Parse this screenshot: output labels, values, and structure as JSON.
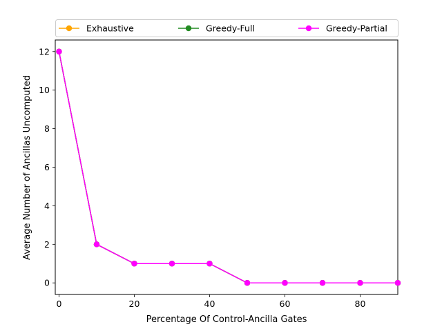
{
  "chart_data": {
    "type": "line",
    "title": "",
    "xlabel": "Percentage Of Control-Ancilla Gates",
    "ylabel": "Average Number of Ancillas Uncomputed",
    "xlim": [
      -1,
      90
    ],
    "ylim": [
      -0.6,
      12.6
    ],
    "x_ticks": [
      0,
      20,
      40,
      60,
      80
    ],
    "y_ticks": [
      0,
      2,
      4,
      6,
      8,
      10,
      12
    ],
    "grid": false,
    "legend_position": "top",
    "x": [
      0,
      10,
      20,
      30,
      40,
      50,
      60,
      70,
      80,
      90
    ],
    "series": [
      {
        "name": "Exhaustive",
        "color": "#ffa500",
        "marker": "circle",
        "values": [
          12,
          2,
          1,
          1,
          1,
          0,
          0,
          0,
          0,
          0
        ]
      },
      {
        "name": "Greedy-Full",
        "color": "#228b22",
        "marker": "circle",
        "values": [
          12,
          2,
          1,
          1,
          1,
          0,
          0,
          0,
          0,
          0
        ]
      },
      {
        "name": "Greedy-Partial",
        "color": "#ff00ff",
        "marker": "circle",
        "values": [
          12,
          2,
          1,
          1,
          1,
          0,
          0,
          0,
          0,
          0
        ]
      }
    ]
  }
}
